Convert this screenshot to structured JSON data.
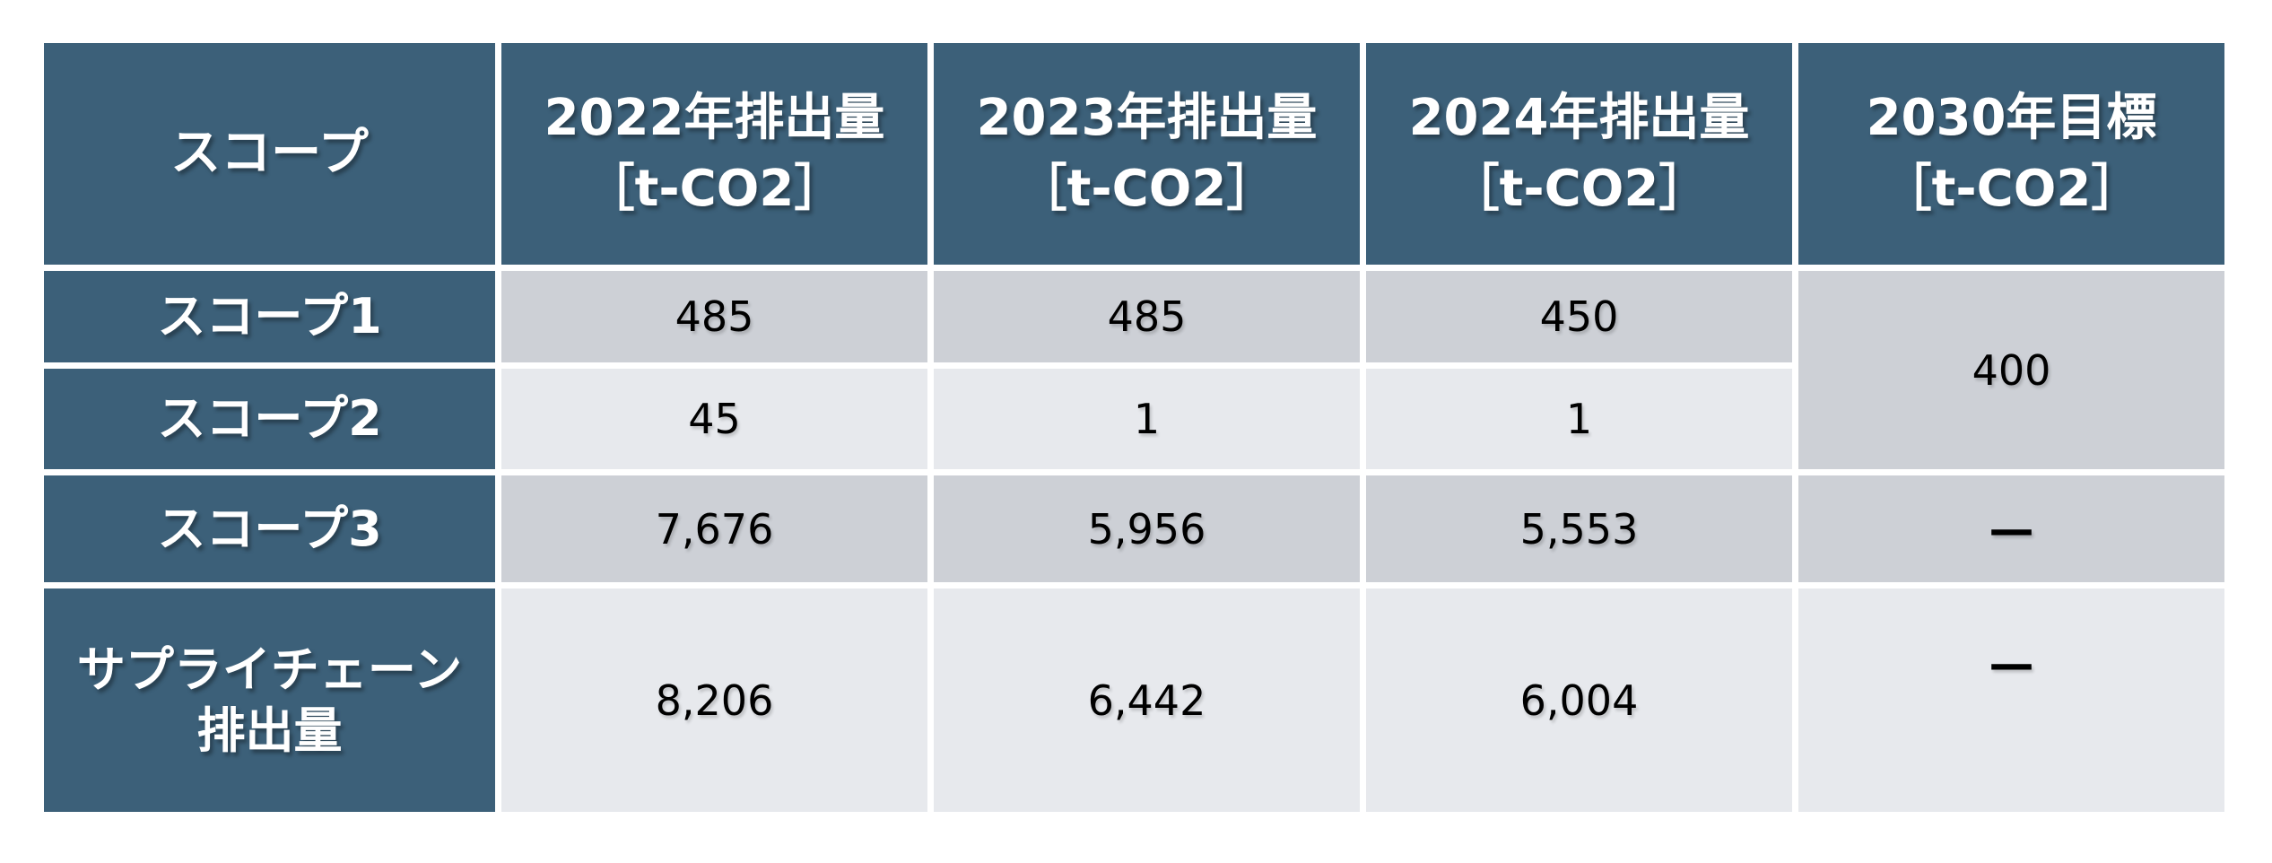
{
  "table": {
    "header": {
      "scope": "スコープ",
      "col2022": {
        "title": "2022年排出量",
        "unit": "［t-CO2］"
      },
      "col2023": {
        "title": "2023年排出量",
        "unit": "［t-CO2］"
      },
      "col2024": {
        "title": "2024年排出量",
        "unit": "［t-CO2］"
      },
      "col2030": {
        "title": "2030年目標",
        "unit": "［t-CO2］"
      }
    },
    "rows": {
      "scope1": {
        "label": "スコープ1",
        "y2022": "485",
        "y2023": "485",
        "y2024": "450"
      },
      "scope2": {
        "label": "スコープ2",
        "y2022": "45",
        "y2023": "1",
        "y2024": "1"
      },
      "scope12_target2030": "400",
      "scope3": {
        "label": "スコープ3",
        "y2022": "7,676",
        "y2023": "5,956",
        "y2024": "5,553",
        "target2030": "—"
      },
      "supply_chain": {
        "label": "サプライチェーン\n排出量",
        "y2022": "8,206",
        "y2023": "6,442",
        "y2024": "6,004",
        "target2030": "—"
      }
    }
  },
  "colors": {
    "header_blue": "#3c6079",
    "row_gray_dark": "#cdd0d6",
    "row_gray_light": "#e7e9ed",
    "text_white": "#ffffff",
    "text_black": "#000000",
    "background": "#ffffff"
  },
  "chart_data": {
    "type": "table",
    "title": "",
    "columns": [
      "スコープ",
      "2022年排出量［t-CO2］",
      "2023年排出量［t-CO2］",
      "2024年排出量［t-CO2］",
      "2030年目標［t-CO2］"
    ],
    "rows": [
      {
        "scope": "スコープ1",
        "y2022": 485,
        "y2023": 485,
        "y2024": 450,
        "target2030": 400
      },
      {
        "scope": "スコープ2",
        "y2022": 45,
        "y2023": 1,
        "y2024": 1,
        "target2030": 400
      },
      {
        "scope": "スコープ3",
        "y2022": 7676,
        "y2023": 5956,
        "y2024": 5553,
        "target2030": null
      },
      {
        "scope": "サプライチェーン排出量",
        "y2022": 8206,
        "y2023": 6442,
        "y2024": 6004,
        "target2030": null
      }
    ],
    "merged_cells": [
      {
        "description": "2030年目標 400 はスコープ1行とスコープ2行にまたがる結合セル",
        "column": "2030年目標［t-CO2］",
        "row_span": [
          "スコープ1",
          "スコープ2"
        ],
        "value": 400
      }
    ],
    "empty_marker": "—"
  }
}
